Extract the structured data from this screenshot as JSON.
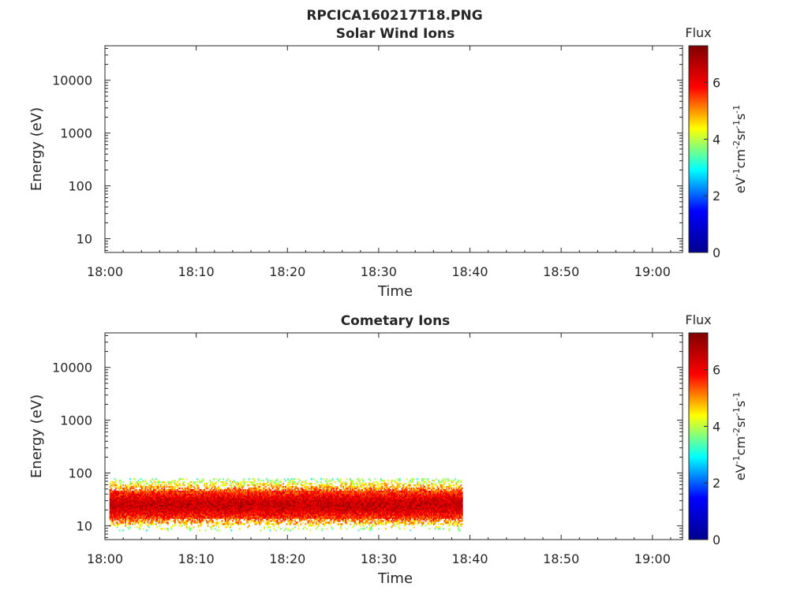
{
  "figure": {
    "title": "RPCICA160217T18.PNG"
  },
  "colors": {
    "axis": "#262626",
    "colormap": [
      "#00008f",
      "#0000ff",
      "#00ffff",
      "#ffff00",
      "#ff0000",
      "#800000"
    ]
  },
  "chart_data": [
    {
      "type": "heatmap",
      "title": "Solar Wind Ions",
      "xlabel": "Time",
      "ylabel": "Energy (eV)",
      "x_ticks": [
        "18:00",
        "18:10",
        "18:20",
        "18:30",
        "18:40",
        "18:50",
        "19:00"
      ],
      "x_tick_minutes": [
        0,
        10,
        20,
        30,
        40,
        50,
        60
      ],
      "xlim_minutes": [
        0,
        63.3
      ],
      "y_scale": "log",
      "y_ticks": [
        "10",
        "100",
        "1000",
        "10000"
      ],
      "y_tick_values": [
        10,
        100,
        1000,
        10000
      ],
      "ylim": [
        5.5,
        45000
      ],
      "colorbar": {
        "label": "Flux",
        "units_label": "eV",
        "range": [
          0,
          7.3
        ],
        "ticks": [
          "0",
          "2",
          "4",
          "6"
        ],
        "tick_values": [
          0,
          2,
          4,
          6
        ]
      },
      "data_present": false
    },
    {
      "type": "heatmap",
      "title": "Cometary Ions",
      "xlabel": "Time",
      "ylabel": "Energy (eV)",
      "x_ticks": [
        "18:00",
        "18:10",
        "18:20",
        "18:30",
        "18:40",
        "18:50",
        "19:00"
      ],
      "x_tick_minutes": [
        0,
        10,
        20,
        30,
        40,
        50,
        60
      ],
      "xlim_minutes": [
        0,
        63.3
      ],
      "y_scale": "log",
      "y_ticks": [
        "10",
        "100",
        "1000",
        "10000"
      ],
      "y_tick_values": [
        10,
        100,
        1000,
        10000
      ],
      "ylim": [
        5.5,
        45000
      ],
      "colorbar": {
        "label": "Flux",
        "units_label": "eV",
        "range": [
          0,
          7.3
        ],
        "ticks": [
          "0",
          "2",
          "4",
          "6"
        ],
        "tick_values": [
          0,
          2,
          4,
          6
        ]
      },
      "data_present": true,
      "time_range_minutes": [
        0.5,
        39.2
      ],
      "energy_band_eV": {
        "min": 8,
        "max": 80
      },
      "peak_energy_eV": 25,
      "flux_peak": 6.5,
      "flux_edge": 3
    }
  ]
}
